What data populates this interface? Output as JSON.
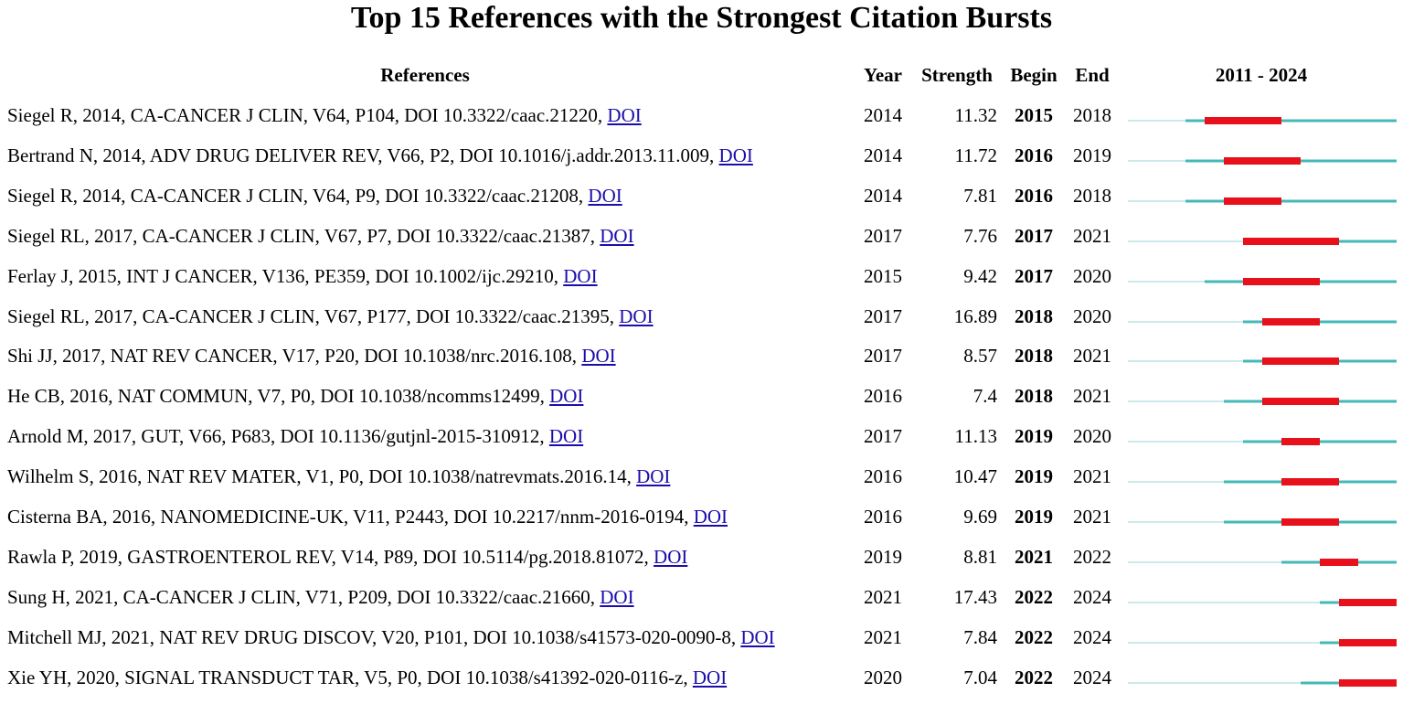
{
  "title": "Top 15 References with the Strongest Citation Bursts",
  "headers": {
    "references": "References",
    "year": "Year",
    "strength": "Strength",
    "begin": "Begin",
    "end": "End",
    "range": "2011 - 2024"
  },
  "colors": {
    "pre_citation": "#cde9ea",
    "cited": "#45b8b8",
    "burst": "#e8101a",
    "link": "#1a0dab"
  },
  "chart_data": {
    "type": "table",
    "title": "Top 15 References with the Strongest Citation Bursts",
    "timeline_range": [
      2011,
      2024
    ],
    "columns": [
      "References",
      "Year",
      "Strength",
      "Begin",
      "End",
      "2011 - 2024"
    ],
    "rows": [
      {
        "ref": "Siegel R, 2014, CA-CANCER J CLIN, V64, P104, DOI 10.3322/caac.21220, ",
        "link": "DOI",
        "year": 2014,
        "strength": "11.32",
        "begin": 2015,
        "end": 2018
      },
      {
        "ref": "Bertrand N, 2014, ADV DRUG DELIVER REV, V66, P2, DOI 10.1016/j.addr.2013.11.009, ",
        "link": "DOI",
        "year": 2014,
        "strength": "11.72",
        "begin": 2016,
        "end": 2019
      },
      {
        "ref": "Siegel R, 2014, CA-CANCER J CLIN, V64, P9, DOI 10.3322/caac.21208, ",
        "link": "DOI",
        "year": 2014,
        "strength": "7.81",
        "begin": 2016,
        "end": 2018
      },
      {
        "ref": "Siegel RL, 2017, CA-CANCER J CLIN, V67, P7, DOI 10.3322/caac.21387, ",
        "link": "DOI",
        "year": 2017,
        "strength": "7.76",
        "begin": 2017,
        "end": 2021
      },
      {
        "ref": "Ferlay J, 2015, INT J CANCER, V136, PE359, DOI 10.1002/ijc.29210, ",
        "link": "DOI",
        "year": 2015,
        "strength": "9.42",
        "begin": 2017,
        "end": 2020
      },
      {
        "ref": "Siegel RL, 2017, CA-CANCER J CLIN, V67, P177, DOI 10.3322/caac.21395, ",
        "link": "DOI",
        "year": 2017,
        "strength": "16.89",
        "begin": 2018,
        "end": 2020
      },
      {
        "ref": "Shi JJ, 2017, NAT REV CANCER, V17, P20, DOI 10.1038/nrc.2016.108, ",
        "link": "DOI",
        "year": 2017,
        "strength": "8.57",
        "begin": 2018,
        "end": 2021
      },
      {
        "ref": "He CB, 2016, NAT COMMUN, V7, P0, DOI 10.1038/ncomms12499, ",
        "link": "DOI",
        "year": 2016,
        "strength": "7.4",
        "begin": 2018,
        "end": 2021
      },
      {
        "ref": "Arnold M, 2017, GUT, V66, P683, DOI 10.1136/gutjnl-2015-310912, ",
        "link": "DOI",
        "year": 2017,
        "strength": "11.13",
        "begin": 2019,
        "end": 2020
      },
      {
        "ref": "Wilhelm S, 2016, NAT REV MATER, V1, P0, DOI 10.1038/natrevmats.2016.14, ",
        "link": "DOI",
        "year": 2016,
        "strength": "10.47",
        "begin": 2019,
        "end": 2021
      },
      {
        "ref": "Cisterna BA, 2016, NANOMEDICINE-UK, V11, P2443, DOI 10.2217/nnm-2016-0194, ",
        "link": "DOI",
        "year": 2016,
        "strength": "9.69",
        "begin": 2019,
        "end": 2021
      },
      {
        "ref": "Rawla P, 2019, GASTROENTEROL REV, V14, P89, DOI 10.5114/pg.2018.81072, ",
        "link": "DOI",
        "year": 2019,
        "strength": "8.81",
        "begin": 2021,
        "end": 2022
      },
      {
        "ref": "Sung H, 2021, CA-CANCER J CLIN, V71, P209, DOI 10.3322/caac.21660, ",
        "link": "DOI",
        "year": 2021,
        "strength": "17.43",
        "begin": 2022,
        "end": 2024
      },
      {
        "ref": "Mitchell MJ, 2021, NAT REV DRUG DISCOV, V20, P101, DOI 10.1038/s41573-020-0090-8, ",
        "link": "DOI",
        "year": 2021,
        "strength": "7.84",
        "begin": 2022,
        "end": 2024
      },
      {
        "ref": "Xie YH, 2020, SIGNAL TRANSDUCT TAR, V5, P0, DOI 10.1038/s41392-020-0116-z, ",
        "link": "DOI",
        "year": 2020,
        "strength": "7.04",
        "begin": 2022,
        "end": 2024
      }
    ]
  }
}
